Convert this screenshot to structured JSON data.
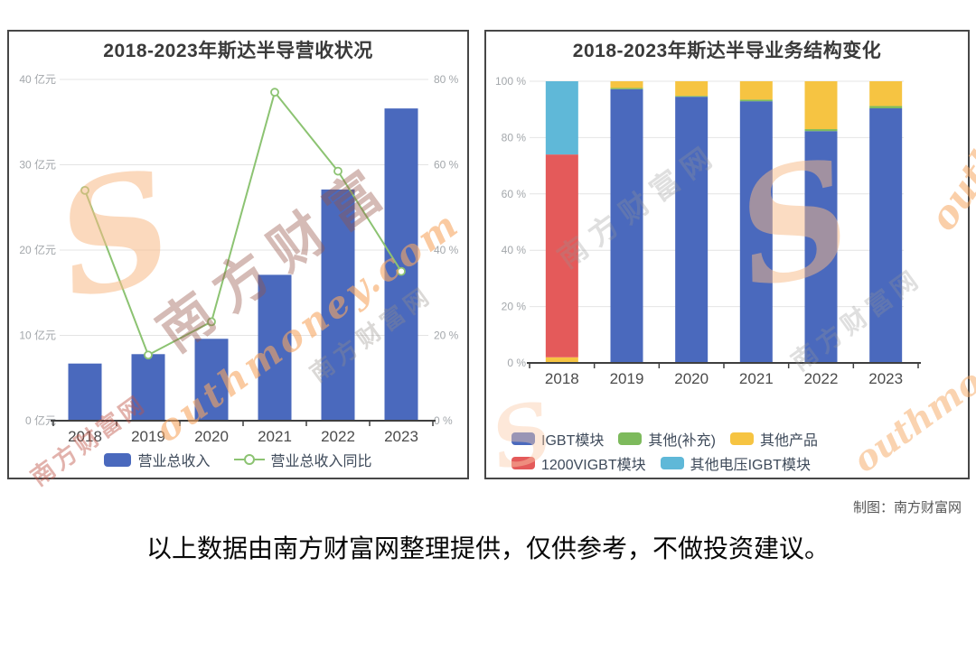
{
  "page": {
    "background": "#ffffff",
    "credit": "制图：南方财富网",
    "disclaimer": "以上数据由南方财富网整理提供，仅供参考，不做投资建议。"
  },
  "palette": {
    "bar_blue": "#4a69bd",
    "line_green": "#8cc372",
    "stack_green": "#7dba5c",
    "stack_yellow": "#f6c442",
    "stack_red": "#e45a5a",
    "stack_lightblue": "#5fb8d8",
    "grid_gray": "#e4e4e4",
    "axis_dark": "#3f3f3f"
  },
  "watermarks": {
    "brand_cn": "南方财富",
    "brand_cn_full": "南方财富网",
    "brand_en": "outhmoney.com",
    "brand_en_short": "outhmone",
    "s_glyph": "S"
  },
  "chart_data": [
    {
      "type": "bar",
      "title": "2018-2023年斯达半导营收状况",
      "categories": [
        "2018",
        "2019",
        "2020",
        "2021",
        "2022",
        "2023"
      ],
      "series": [
        {
          "name": "营业总收入",
          "chart": "bar",
          "axis": "left",
          "unit": "亿元",
          "color": "#4a69bd",
          "values": [
            6.7,
            7.8,
            9.6,
            17.1,
            27.1,
            36.6
          ]
        },
        {
          "name": "营业总收入同比",
          "chart": "line",
          "axis": "right",
          "unit": "%",
          "color": "#8cc372",
          "values": [
            54,
            15.4,
            23.2,
            77,
            58.5,
            35
          ]
        }
      ],
      "left_axis": {
        "min": 0,
        "max": 40,
        "ticks": [
          {
            "value": 0,
            "label": "0 亿元"
          },
          {
            "value": 10,
            "label": "10 亿元"
          },
          {
            "value": 20,
            "label": "20 亿元"
          },
          {
            "value": 30,
            "label": "30 亿元"
          },
          {
            "value": 40,
            "label": "40 亿元"
          }
        ]
      },
      "right_axis": {
        "min": 0,
        "max": 80,
        "ticks": [
          {
            "value": 0,
            "label": "0 %"
          },
          {
            "value": 20,
            "label": "20 %"
          },
          {
            "value": 40,
            "label": "40 %"
          },
          {
            "value": 60,
            "label": "60 %"
          },
          {
            "value": 80,
            "label": "80 %"
          }
        ]
      },
      "grid": true,
      "legend_position": "bottom"
    },
    {
      "type": "bar",
      "stacked": true,
      "title": "2018-2023年斯达半导业务结构变化",
      "categories": [
        "2018",
        "2019",
        "2020",
        "2021",
        "2022",
        "2023"
      ],
      "series": [
        {
          "name": "IGBT模块",
          "color": "#4a69bd",
          "values": [
            0,
            97.2,
            94.5,
            92.9,
            82.3,
            90.4
          ]
        },
        {
          "name": "其他(补充)",
          "color": "#7dba5c",
          "values": [
            0,
            0.4,
            0.3,
            0.6,
            0.7,
            0.8
          ]
        },
        {
          "name": "其他产品",
          "color": "#f6c442",
          "values": [
            2,
            2.4,
            5.2,
            6.5,
            17,
            8.8
          ]
        },
        {
          "name": "1200VIGBT模块",
          "color": "#e45a5a",
          "values": [
            72,
            0,
            0,
            0,
            0,
            0
          ]
        },
        {
          "name": "其他电压IGBT模块",
          "color": "#5fb8d8",
          "values": [
            26,
            0,
            0,
            0,
            0,
            0
          ]
        }
      ],
      "y_axis": {
        "min": 0,
        "max": 100,
        "unit": "%",
        "ticks": [
          {
            "value": 0,
            "label": "0 %"
          },
          {
            "value": 20,
            "label": "20 %"
          },
          {
            "value": 40,
            "label": "40 %"
          },
          {
            "value": 60,
            "label": "60 %"
          },
          {
            "value": 80,
            "label": "80 %"
          },
          {
            "value": 100,
            "label": "100 %"
          }
        ]
      },
      "grid": true,
      "legend_position": "bottom"
    }
  ]
}
